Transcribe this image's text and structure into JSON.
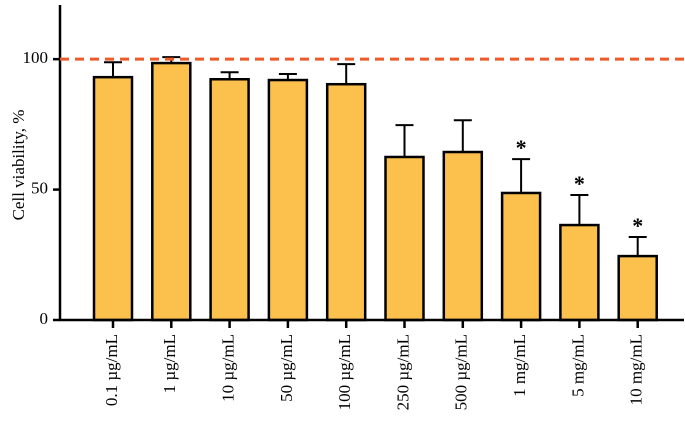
{
  "chart_data": {
    "type": "bar",
    "y_label": "Cell viability, %",
    "categories": [
      "0.1 µg/mL",
      "1 µg/mL",
      "10 µg/mL",
      "50 µg/mL",
      "100 µg/mL",
      "250 µg/mL",
      "500 µg/mL",
      "1 mg/mL",
      "5 mg/mL",
      "10 mg/mL"
    ],
    "values": [
      93.1,
      98.5,
      92.3,
      92,
      90.4,
      62.5,
      64.4,
      48.7,
      36.4,
      24.5
    ],
    "errors": [
      5.7,
      2.3,
      2.7,
      2.3,
      7.7,
      12.2,
      12.2,
      13,
      11.5,
      7.3
    ],
    "color": "#fbc14c",
    "ylim": [
      0,
      120
    ],
    "yticks": [
      0,
      50,
      100
    ],
    "reference_line": {
      "value": 100,
      "color": "#ee5a2a",
      "dashed": true
    },
    "annotations": [
      {
        "category": "1 mg/mL",
        "text": "*"
      },
      {
        "category": "5 mg/mL",
        "text": "*"
      },
      {
        "category": "10 mg/mL",
        "text": "*"
      }
    ]
  }
}
